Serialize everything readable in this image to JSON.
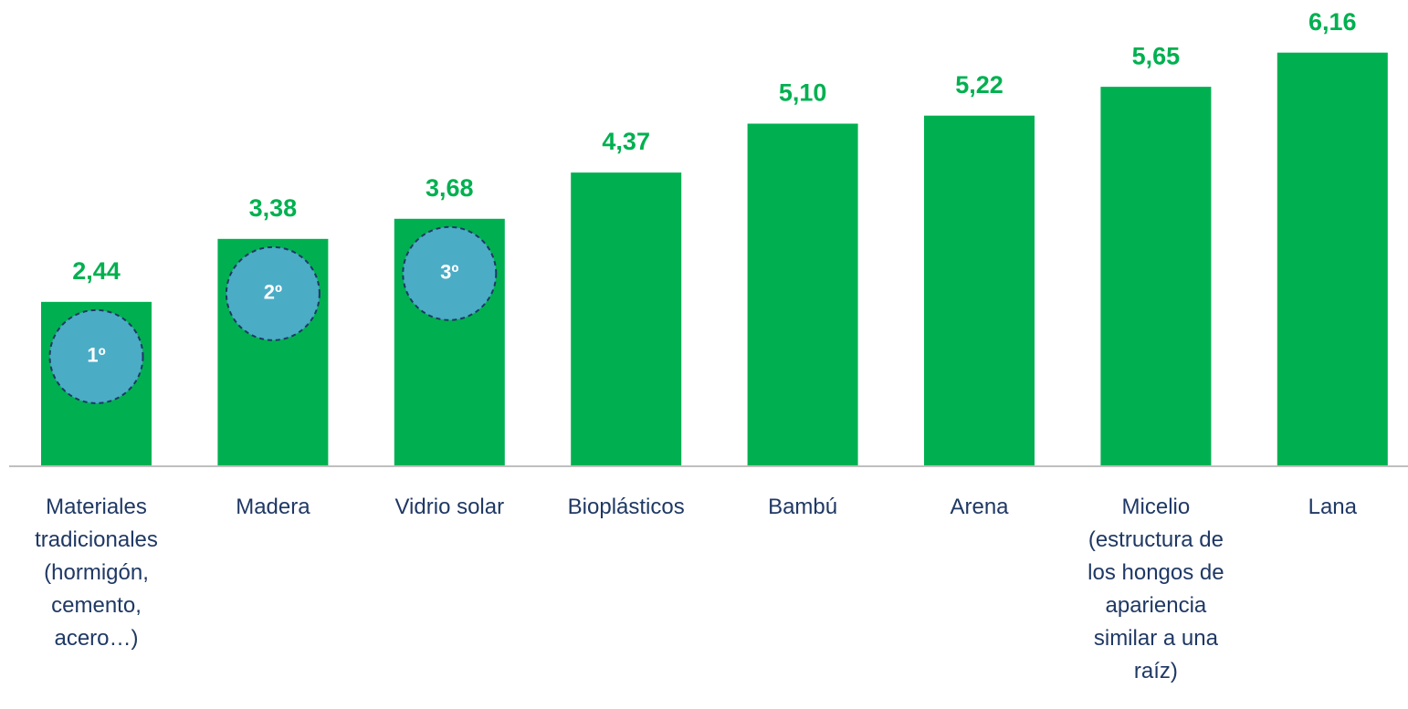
{
  "chart_data": {
    "type": "bar",
    "categories": [
      "Materiales tradicionales (hormigón, cemento, acero…)",
      "Madera",
      "Vidrio solar",
      "Bioplásticos",
      "Bambú",
      "Arena",
      "Micelio (estructura de los hongos de apariencia similar a una raíz)",
      "Lana"
    ],
    "values": [
      2.44,
      3.38,
      3.68,
      4.37,
      5.1,
      5.22,
      5.65,
      6.16
    ],
    "value_labels": [
      "2,44",
      "3,38",
      "3,68",
      "4,37",
      "5,10",
      "5,22",
      "5,65",
      "6,16"
    ],
    "color": "#00b050",
    "ylim": [
      0,
      7
    ],
    "annotations": [
      "1º",
      "2º",
      "3º"
    ]
  }
}
